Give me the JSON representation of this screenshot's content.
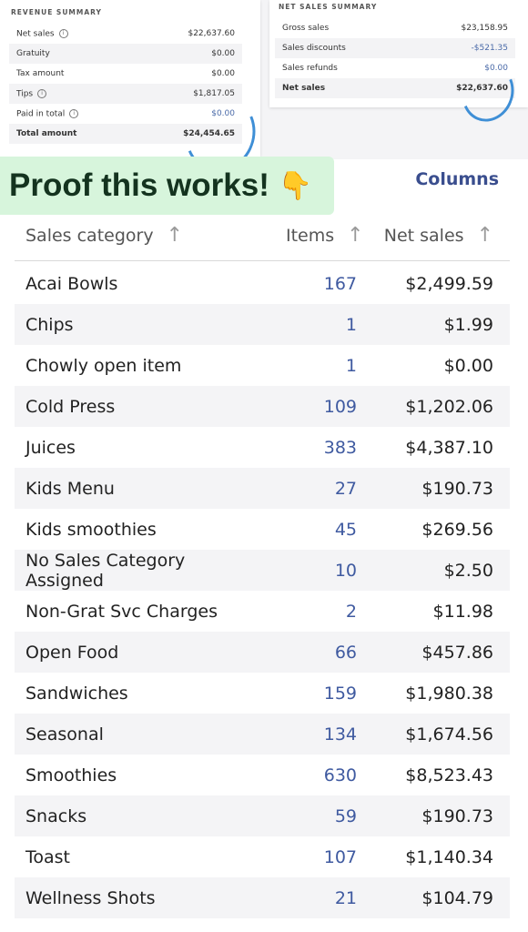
{
  "revenue_summary": {
    "title": "REVENUE SUMMARY",
    "rows": [
      {
        "label": "Net sales",
        "value": "$22,637.60"
      },
      {
        "label": "Gratuity",
        "value": "$0.00"
      },
      {
        "label": "Tax amount",
        "value": "$0.00"
      },
      {
        "label": "Tips",
        "value": "$1,817.05"
      },
      {
        "label": "Paid in total",
        "value": "$0.00"
      },
      {
        "label": "Total amount",
        "value": "$24,454.65"
      }
    ]
  },
  "net_sales_summary": {
    "title": "NET SALES SUMMARY",
    "rows": [
      {
        "label": "Gross sales",
        "value": "$23,158.95"
      },
      {
        "label": "Sales discounts",
        "value": "-$521.35"
      },
      {
        "label": "Sales refunds",
        "value": "$0.00"
      },
      {
        "label": "Net sales",
        "value": "$22,637.60"
      }
    ]
  },
  "banner": {
    "text": "Proof this works!",
    "emoji": "👇"
  },
  "columns_link": "Columns",
  "table": {
    "headers": {
      "category": "Sales category",
      "items": "Items",
      "net_sales": "Net sales"
    },
    "rows": [
      {
        "category": "Acai Bowls",
        "items": "167",
        "net_sales": "$2,499.59"
      },
      {
        "category": "Chips",
        "items": "1",
        "net_sales": "$1.99"
      },
      {
        "category": "Chowly open item",
        "items": "1",
        "net_sales": "$0.00"
      },
      {
        "category": "Cold Press",
        "items": "109",
        "net_sales": "$1,202.06"
      },
      {
        "category": "Juices",
        "items": "383",
        "net_sales": "$4,387.10"
      },
      {
        "category": "Kids Menu",
        "items": "27",
        "net_sales": "$190.73"
      },
      {
        "category": "Kids smoothies",
        "items": "45",
        "net_sales": "$269.56"
      },
      {
        "category": "No Sales Category Assigned",
        "items": "10",
        "net_sales": "$2.50"
      },
      {
        "category": "Non-Grat Svc Charges",
        "items": "2",
        "net_sales": "$11.98"
      },
      {
        "category": "Open Food",
        "items": "66",
        "net_sales": "$457.86"
      },
      {
        "category": "Sandwiches",
        "items": "159",
        "net_sales": "$1,980.38"
      },
      {
        "category": "Seasonal",
        "items": "134",
        "net_sales": "$1,674.56"
      },
      {
        "category": "Smoothies",
        "items": "630",
        "net_sales": "$8,523.43"
      },
      {
        "category": "Snacks",
        "items": "59",
        "net_sales": "$190.73"
      },
      {
        "category": "Toast",
        "items": "107",
        "net_sales": "$1,140.34"
      },
      {
        "category": "Wellness Shots",
        "items": "21",
        "net_sales": "$104.79"
      }
    ]
  },
  "colors": {
    "accent_blue": "#3f5aa0",
    "banner_bg": "#d7f5dc",
    "circle_mark": "#3f8fd6"
  },
  "icons": {
    "info": "info-icon",
    "sort": "sort-arrow-icon",
    "pointing_hand": "pointing-down-hand-icon"
  }
}
